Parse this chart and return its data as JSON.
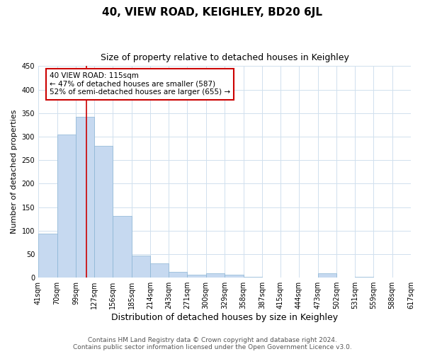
{
  "title": "40, VIEW ROAD, KEIGHLEY, BD20 6JL",
  "subtitle": "Size of property relative to detached houses in Keighley",
  "xlabel": "Distribution of detached houses by size in Keighley",
  "ylabel": "Number of detached properties",
  "bar_labels": [
    "41sqm",
    "70sqm",
    "99sqm",
    "127sqm",
    "156sqm",
    "185sqm",
    "214sqm",
    "243sqm",
    "271sqm",
    "300sqm",
    "329sqm",
    "358sqm",
    "387sqm",
    "415sqm",
    "444sqm",
    "473sqm",
    "502sqm",
    "531sqm",
    "559sqm",
    "588sqm",
    "617sqm"
  ],
  "bar_values": [
    93,
    304,
    342,
    280,
    132,
    47,
    31,
    13,
    7,
    10,
    6,
    2,
    0,
    0,
    0,
    9,
    0,
    2,
    0,
    1
  ],
  "bar_color": "#c6d9f0",
  "bar_edge_color": "#8ab4d4",
  "vline_x": 115,
  "bin_edges": [
    41,
    70,
    99,
    127,
    156,
    185,
    214,
    243,
    271,
    300,
    329,
    358,
    387,
    415,
    444,
    473,
    502,
    531,
    559,
    588,
    617
  ],
  "ylim": [
    0,
    450
  ],
  "annotation_title": "40 VIEW ROAD: 115sqm",
  "annotation_line1": "← 47% of detached houses are smaller (587)",
  "annotation_line2": "52% of semi-detached houses are larger (655) →",
  "annotation_box_color": "#ffffff",
  "annotation_box_edge": "#cc0000",
  "vline_color": "#cc0000",
  "footer_line1": "Contains HM Land Registry data © Crown copyright and database right 2024.",
  "footer_line2": "Contains public sector information licensed under the Open Government Licence v3.0.",
  "title_fontsize": 11,
  "subtitle_fontsize": 9,
  "xlabel_fontsize": 9,
  "ylabel_fontsize": 8,
  "tick_fontsize": 7,
  "footer_fontsize": 6.5,
  "background_color": "#ffffff",
  "grid_color": "#d0e0ee"
}
